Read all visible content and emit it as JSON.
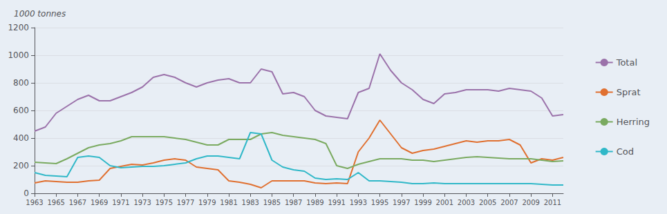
{
  "chart_data": {
    "type": "line",
    "ylabel": "1000 tonnes",
    "x": [
      1963,
      1964,
      1965,
      1966,
      1967,
      1968,
      1969,
      1970,
      1971,
      1972,
      1973,
      1974,
      1975,
      1976,
      1977,
      1978,
      1979,
      1980,
      1981,
      1982,
      1983,
      1984,
      1985,
      1986,
      1987,
      1988,
      1989,
      1990,
      1991,
      1992,
      1993,
      1994,
      1995,
      1996,
      1997,
      1998,
      1999,
      2000,
      2001,
      2002,
      2003,
      2004,
      2005,
      2006,
      2007,
      2008,
      2009,
      2010,
      2011,
      2012
    ],
    "series": [
      {
        "name": "Total",
        "color": "#9b72aa",
        "values": [
          450,
          480,
          580,
          630,
          680,
          710,
          670,
          670,
          700,
          730,
          770,
          840,
          860,
          840,
          800,
          770,
          800,
          820,
          830,
          800,
          800,
          900,
          880,
          720,
          730,
          700,
          600,
          560,
          550,
          540,
          730,
          760,
          1010,
          890,
          800,
          750,
          680,
          650,
          720,
          730,
          750,
          750,
          750,
          740,
          760,
          750,
          740,
          690,
          560,
          570
        ]
      },
      {
        "name": "Sprat",
        "color": "#e07030",
        "values": [
          75,
          90,
          85,
          80,
          80,
          90,
          95,
          180,
          195,
          210,
          205,
          220,
          240,
          250,
          240,
          190,
          180,
          170,
          90,
          80,
          65,
          40,
          90,
          90,
          90,
          90,
          75,
          70,
          75,
          70,
          300,
          400,
          530,
          430,
          330,
          290,
          310,
          320,
          340,
          360,
          380,
          370,
          380,
          380,
          390,
          350,
          220,
          250,
          240,
          260
        ]
      },
      {
        "name": "Herring",
        "color": "#7aaa60",
        "values": [
          225,
          220,
          215,
          250,
          290,
          330,
          350,
          360,
          380,
          410,
          410,
          410,
          410,
          400,
          390,
          370,
          350,
          350,
          390,
          390,
          390,
          430,
          440,
          420,
          410,
          400,
          390,
          360,
          200,
          180,
          210,
          230,
          250,
          250,
          250,
          240,
          240,
          230,
          240,
          250,
          260,
          265,
          260,
          255,
          250,
          250,
          250,
          240,
          230,
          235
        ]
      },
      {
        "name": "Cod",
        "color": "#30b8c8",
        "values": [
          150,
          130,
          125,
          120,
          260,
          270,
          260,
          200,
          185,
          190,
          195,
          195,
          200,
          210,
          220,
          250,
          270,
          270,
          260,
          250,
          440,
          430,
          240,
          190,
          170,
          160,
          110,
          100,
          105,
          100,
          150,
          90,
          90,
          85,
          80,
          70,
          70,
          75,
          70,
          70,
          70,
          70,
          70,
          70,
          70,
          70,
          70,
          65,
          60,
          60
        ]
      }
    ],
    "xlim": [
      1963,
      2012
    ],
    "xticks": [
      1963,
      1965,
      1967,
      1969,
      1971,
      1973,
      1975,
      1977,
      1979,
      1981,
      1983,
      1985,
      1987,
      1989,
      1991,
      1993,
      1995,
      1997,
      1999,
      2001,
      2003,
      2005,
      2007,
      2009,
      2011
    ],
    "ylim": [
      0,
      1200
    ],
    "yticks": [
      0,
      200,
      400,
      600,
      800,
      1000,
      1200
    ],
    "grid": true,
    "legend": "right"
  }
}
